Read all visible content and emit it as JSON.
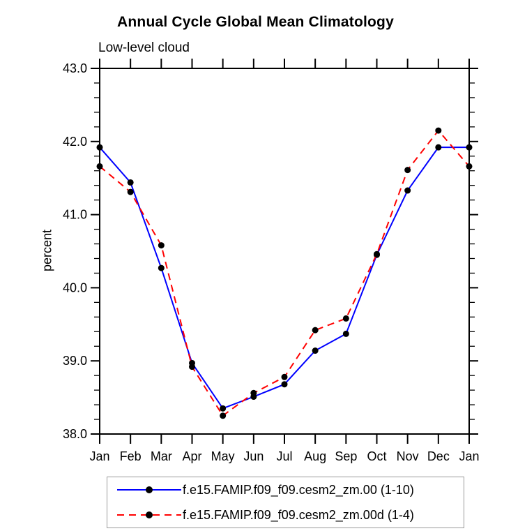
{
  "title": "Annual Cycle Global Mean Climatology",
  "subtitle": "Low-level cloud",
  "chart_data": {
    "type": "line",
    "title": "Annual Cycle Global Mean Climatology",
    "subtitle": "Low-level cloud",
    "xlabel": "",
    "ylabel": "percent",
    "ylim": [
      38.0,
      43.0
    ],
    "ytick_step": 1.0,
    "yminor_step": 0.2,
    "ytick_format_decimals": 1,
    "grid": false,
    "legend_position": "bottom",
    "categories": [
      "Jan",
      "Feb",
      "Mar",
      "Apr",
      "May",
      "Jun",
      "Jul",
      "Aug",
      "Sep",
      "Oct",
      "Nov",
      "Dec",
      "Jan"
    ],
    "series": [
      {
        "name": "f.e15.FAMIP.f09_f09.cesm2_zm.00 (1-10)",
        "color": "#0000ff",
        "line_style": "solid",
        "marker": "black-dot",
        "values": [
          41.92,
          41.44,
          40.27,
          38.97,
          38.35,
          38.51,
          38.68,
          39.14,
          39.37,
          40.45,
          41.33,
          41.92,
          41.92
        ]
      },
      {
        "name": "f.e15.FAMIP.f09_f09.cesm2_zm.00d (1-4)",
        "color": "#ff0000",
        "line_style": "dashed",
        "marker": "black-dot",
        "values": [
          41.66,
          41.31,
          40.58,
          38.92,
          38.25,
          38.56,
          38.78,
          39.42,
          39.58,
          40.46,
          41.61,
          42.15,
          41.66
        ]
      }
    ],
    "axis_color": "#000000",
    "marker_color": "#000000"
  }
}
